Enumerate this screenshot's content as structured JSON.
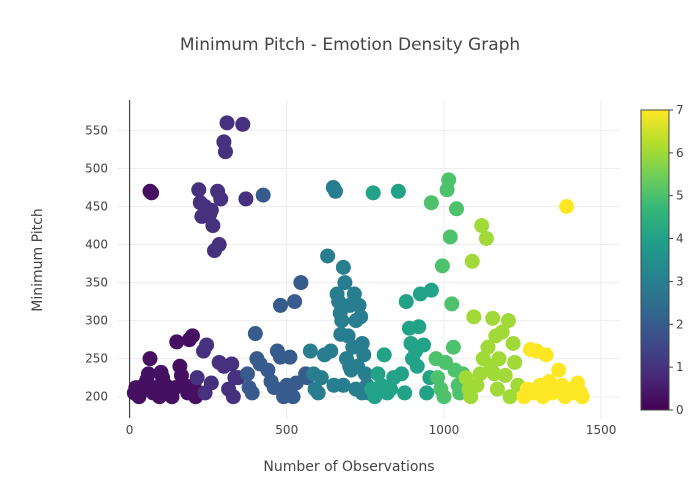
{
  "chart_data": {
    "type": "scatter",
    "title": "Minimum Pitch - Emotion Density Graph",
    "xlabel": "Number of Observations",
    "ylabel": "Minimum Pitch",
    "xlim": [
      -40,
      1560
    ],
    "ylim": [
      172,
      590
    ],
    "x_ticks": [
      0,
      500,
      1000,
      1500
    ],
    "y_ticks": [
      200,
      250,
      300,
      350,
      400,
      450,
      500,
      550
    ],
    "grid": true,
    "colorbar": {
      "min": 0,
      "max": 7,
      "ticks": [
        0,
        1,
        2,
        3,
        4,
        5,
        6,
        7
      ],
      "colorscale": "Viridis",
      "colors": [
        "#440154",
        "#482878",
        "#3e4989",
        "#31688e",
        "#26828e",
        "#1f9e89",
        "#35b779",
        "#6ece58",
        "#b5de2b",
        "#fde725"
      ]
    },
    "series": [
      {
        "color_value": 0.3,
        "points": [
          [
            15,
            205
          ],
          [
            20,
            212
          ],
          [
            30,
            200
          ],
          [
            35,
            208
          ],
          [
            45,
            215
          ],
          [
            55,
            222
          ],
          [
            60,
            230
          ],
          [
            65,
            250
          ],
          [
            75,
            205
          ],
          [
            85,
            212
          ],
          [
            95,
            200
          ],
          [
            105,
            225
          ],
          [
            115,
            215
          ],
          [
            125,
            205
          ],
          [
            135,
            200
          ],
          [
            145,
            212
          ],
          [
            150,
            272
          ],
          [
            160,
            240
          ],
          [
            165,
            228
          ],
          [
            175,
            215
          ],
          [
            185,
            205
          ],
          [
            190,
            275
          ],
          [
            200,
            280
          ],
          [
            205,
            215
          ],
          [
            210,
            200
          ],
          [
            65,
            470
          ],
          [
            70,
            468
          ],
          [
            100,
            232
          ],
          [
            120,
            210
          ]
        ]
      },
      {
        "color_value": 1.0,
        "points": [
          [
            220,
            472
          ],
          [
            225,
            455
          ],
          [
            230,
            437
          ],
          [
            240,
            450
          ],
          [
            255,
            440
          ],
          [
            260,
            445
          ],
          [
            265,
            425
          ],
          [
            270,
            392
          ],
          [
            280,
            470
          ],
          [
            285,
            400
          ],
          [
            290,
            460
          ],
          [
            300,
            535
          ],
          [
            305,
            522
          ],
          [
            310,
            560
          ],
          [
            315,
            210
          ],
          [
            325,
            243
          ],
          [
            330,
            200
          ],
          [
            335,
            225
          ],
          [
            345,
            225
          ],
          [
            360,
            558
          ],
          [
            370,
            460
          ],
          [
            215,
            225
          ],
          [
            235,
            260
          ],
          [
            245,
            268
          ],
          [
            285,
            245
          ],
          [
            300,
            240
          ],
          [
            260,
            218
          ],
          [
            240,
            205
          ]
        ]
      },
      {
        "color_value": 2.0,
        "points": [
          [
            375,
            230
          ],
          [
            380,
            212
          ],
          [
            390,
            205
          ],
          [
            400,
            283
          ],
          [
            405,
            250
          ],
          [
            415,
            243
          ],
          [
            425,
            465
          ],
          [
            440,
            235
          ],
          [
            450,
            220
          ],
          [
            460,
            212
          ],
          [
            470,
            260
          ],
          [
            480,
            252
          ],
          [
            480,
            320
          ],
          [
            490,
            200
          ],
          [
            500,
            215
          ],
          [
            510,
            252
          ],
          [
            520,
            200
          ],
          [
            525,
            325
          ],
          [
            530,
            218
          ],
          [
            545,
            350
          ],
          [
            560,
            230
          ],
          [
            565,
            225
          ]
        ]
      },
      {
        "color_value": 3.0,
        "points": [
          [
            575,
            260
          ],
          [
            585,
            230
          ],
          [
            590,
            210
          ],
          [
            600,
            205
          ],
          [
            610,
            225
          ],
          [
            620,
            255
          ],
          [
            630,
            385
          ],
          [
            640,
            260
          ],
          [
            648,
            475
          ],
          [
            655,
            470
          ],
          [
            660,
            335
          ],
          [
            665,
            325
          ],
          [
            670,
            310
          ],
          [
            672,
            282
          ],
          [
            675,
            300
          ],
          [
            680,
            370
          ],
          [
            685,
            350
          ],
          [
            690,
            250
          ],
          [
            695,
            280
          ],
          [
            700,
            320
          ],
          [
            705,
            235
          ],
          [
            710,
            265
          ],
          [
            715,
            335
          ],
          [
            720,
            300
          ],
          [
            725,
            240
          ],
          [
            730,
            320
          ],
          [
            735,
            305
          ],
          [
            740,
            270
          ],
          [
            745,
            255
          ],
          [
            750,
            230
          ],
          [
            755,
            215
          ],
          [
            760,
            205
          ],
          [
            650,
            215
          ],
          [
            680,
            215
          ],
          [
            700,
            240
          ],
          [
            720,
            210
          ],
          [
            740,
            205
          ]
        ]
      },
      {
        "color_value": 4.0,
        "points": [
          [
            770,
            210
          ],
          [
            780,
            200
          ],
          [
            775,
            468
          ],
          [
            790,
            230
          ],
          [
            800,
            215
          ],
          [
            810,
            255
          ],
          [
            820,
            205
          ],
          [
            830,
            210
          ],
          [
            840,
            225
          ],
          [
            855,
            470
          ],
          [
            865,
            230
          ],
          [
            875,
            205
          ],
          [
            880,
            325
          ],
          [
            890,
            290
          ],
          [
            895,
            270
          ],
          [
            900,
            250
          ],
          [
            910,
            260
          ],
          [
            915,
            240
          ],
          [
            920,
            292
          ],
          [
            925,
            335
          ],
          [
            935,
            268
          ],
          [
            945,
            205
          ],
          [
            955,
            225
          ],
          [
            960,
            340
          ]
        ]
      },
      {
        "color_value": 5.0,
        "points": [
          [
            960,
            455
          ],
          [
            975,
            250
          ],
          [
            980,
            225
          ],
          [
            990,
            210
          ],
          [
            995,
            372
          ],
          [
            1000,
            200
          ],
          [
            1005,
            245
          ],
          [
            1010,
            472
          ],
          [
            1015,
            485
          ],
          [
            1020,
            410
          ],
          [
            1025,
            322
          ],
          [
            1030,
            265
          ],
          [
            1035,
            235
          ],
          [
            1040,
            447
          ],
          [
            1045,
            215
          ],
          [
            1050,
            205
          ],
          [
            1060,
            230
          ]
        ]
      },
      {
        "color_value": 6.0,
        "points": [
          [
            1070,
            225
          ],
          [
            1080,
            210
          ],
          [
            1085,
            200
          ],
          [
            1090,
            378
          ],
          [
            1095,
            305
          ],
          [
            1105,
            215
          ],
          [
            1115,
            230
          ],
          [
            1120,
            425
          ],
          [
            1135,
            408
          ],
          [
            1140,
            265
          ],
          [
            1150,
            240
          ],
          [
            1155,
            303
          ],
          [
            1165,
            280
          ],
          [
            1170,
            210
          ],
          [
            1175,
            250
          ],
          [
            1185,
            285
          ],
          [
            1195,
            228
          ],
          [
            1205,
            300
          ],
          [
            1210,
            200
          ],
          [
            1220,
            270
          ],
          [
            1225,
            245
          ],
          [
            1235,
            215
          ],
          [
            1125,
            250
          ],
          [
            1160,
            230
          ]
        ]
      },
      {
        "color_value": 7.0,
        "points": [
          [
            1255,
            200
          ],
          [
            1265,
            210
          ],
          [
            1275,
            262
          ],
          [
            1285,
            205
          ],
          [
            1295,
            260
          ],
          [
            1305,
            215
          ],
          [
            1315,
            200
          ],
          [
            1325,
            255
          ],
          [
            1335,
            220
          ],
          [
            1345,
            205
          ],
          [
            1355,
            210
          ],
          [
            1365,
            235
          ],
          [
            1375,
            215
          ],
          [
            1385,
            200
          ],
          [
            1390,
            450
          ],
          [
            1405,
            210
          ],
          [
            1415,
            205
          ],
          [
            1425,
            218
          ],
          [
            1435,
            205
          ],
          [
            1440,
            200
          ]
        ]
      }
    ]
  }
}
